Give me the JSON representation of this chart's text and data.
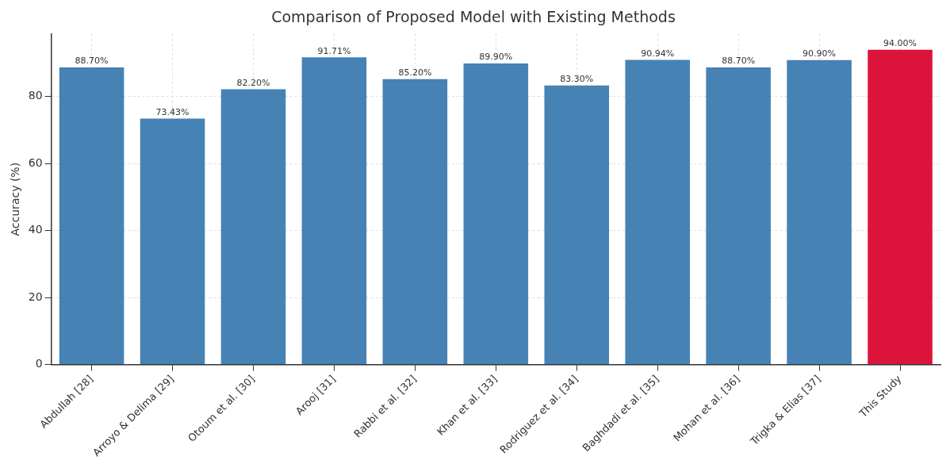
{
  "chart_data": {
    "type": "bar",
    "title": "Comparison of Proposed Model with Existing Methods",
    "ylabel": "Accuracy (%)",
    "categories": [
      "Abdullah [28]",
      "Arroyo & Delima [29]",
      "Otoum et al. [30]",
      "Arooj [31]",
      "Rabbi et al. [32]",
      "Khan et al. [33]",
      "Rodriguez et al. [34]",
      "Baghdadi et al. [35]",
      "Mohan et al. [36]",
      "Trigka & Elias [37]",
      "This Study"
    ],
    "values": [
      88.7,
      73.43,
      82.2,
      91.71,
      85.2,
      89.9,
      83.3,
      90.94,
      88.7,
      90.9,
      94.0
    ],
    "colors": [
      "#4682b4",
      "#4682b4",
      "#4682b4",
      "#4682b4",
      "#4682b4",
      "#4682b4",
      "#4682b4",
      "#4682b4",
      "#4682b4",
      "#4682b4",
      "#dc143c"
    ],
    "value_labels": [
      "88.70%",
      "73.43%",
      "82.20%",
      "91.71%",
      "85.20%",
      "89.90%",
      "83.30%",
      "90.94%",
      "88.70%",
      "90.90%",
      "94.00%"
    ],
    "ylim": [
      0,
      98.7
    ],
    "yticks": [
      0,
      20,
      40,
      60,
      80
    ],
    "grid": true
  }
}
